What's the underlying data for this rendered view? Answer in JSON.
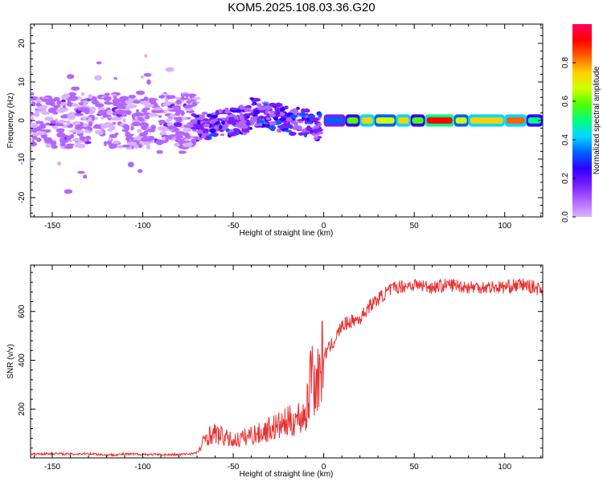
{
  "page_title": "KOM5.2025.108.03.36.G20",
  "colors": {
    "snr_line": "#e83030",
    "colormap": [
      "#d9b3ff",
      "#b366ff",
      "#7a1cff",
      "#3000ff",
      "#0060ff",
      "#00d8ff",
      "#00ff80",
      "#50ff00",
      "#d0ff00",
      "#ffd000",
      "#ff6000",
      "#ff0000",
      "#ff0060"
    ]
  },
  "chart_data": [
    {
      "type": "heatmap",
      "title": "",
      "xlabel": "Height of straight line (km)",
      "ylabel": "Frequency (Hz)",
      "xlim": [
        -162,
        121
      ],
      "ylim": [
        -25,
        25
      ],
      "x_ticks": [
        -150,
        -100,
        -50,
        0,
        50,
        100
      ],
      "y_ticks": [
        -20,
        -10,
        0,
        10,
        20
      ],
      "colorbar": {
        "label": "Normalized spectral amplitude",
        "range": [
          0,
          1
        ],
        "ticks": [
          "0.0",
          "0.2",
          "0.4",
          "0.6",
          "0.8"
        ]
      },
      "description_of_field": {
        "below_minus70_km": "scattered low-amplitude blobs between -10 and 10 Hz",
        "minus70_to_0_km": "moderate amplitude band near 0 Hz rising to ~3 Hz near -30 km",
        "above_0_km": "strong band at 0 Hz with amplitude 0.6-1.0"
      }
    },
    {
      "type": "line",
      "title": "",
      "xlabel": "Height of straight line (km)",
      "ylabel": "SNR (v/v)",
      "xlim": [
        -162,
        121
      ],
      "ylim": [
        0,
        790
      ],
      "x_ticks": [
        -150,
        -100,
        -50,
        0,
        50,
        100
      ],
      "y_ticks": [
        200,
        400,
        600
      ],
      "series": [
        {
          "x": [
            -162,
            -150,
            -140,
            -130,
            -120,
            -110,
            -100,
            -90,
            -80,
            -70,
            -68,
            -65,
            -60,
            -55,
            -50,
            -45,
            -40,
            -35,
            -30,
            -25,
            -20,
            -15,
            -10,
            -8,
            -7,
            -6,
            -5,
            -3,
            0,
            5,
            10,
            15,
            20,
            25,
            30,
            35,
            40,
            50,
            60,
            70,
            80,
            90,
            100,
            110,
            121
          ],
          "y": [
            15,
            18,
            15,
            18,
            12,
            15,
            15,
            13,
            13,
            20,
            40,
            90,
            100,
            85,
            70,
            80,
            95,
            100,
            120,
            130,
            145,
            160,
            180,
            250,
            420,
            360,
            290,
            330,
            420,
            470,
            540,
            560,
            570,
            620,
            650,
            680,
            700,
            710,
            700,
            710,
            700,
            700,
            700,
            710,
            690
          ]
        }
      ]
    }
  ]
}
